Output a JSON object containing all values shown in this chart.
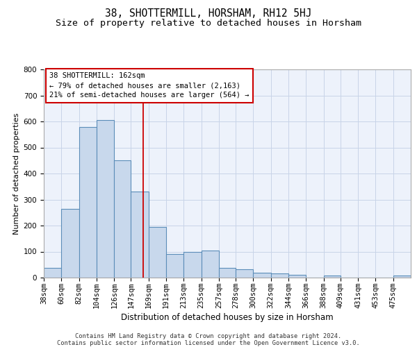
{
  "title": "38, SHOTTERMILL, HORSHAM, RH12 5HJ",
  "subtitle": "Size of property relative to detached houses in Horsham",
  "xlabel": "Distribution of detached houses by size in Horsham",
  "ylabel": "Number of detached properties",
  "categories": [
    "38sqm",
    "60sqm",
    "82sqm",
    "104sqm",
    "126sqm",
    "147sqm",
    "169sqm",
    "191sqm",
    "213sqm",
    "235sqm",
    "257sqm",
    "278sqm",
    "300sqm",
    "322sqm",
    "344sqm",
    "366sqm",
    "388sqm",
    "409sqm",
    "431sqm",
    "453sqm",
    "475sqm"
  ],
  "values": [
    38,
    265,
    580,
    605,
    450,
    330,
    195,
    90,
    100,
    105,
    38,
    33,
    18,
    17,
    12,
    0,
    8,
    0,
    0,
    0,
    8
  ],
  "bar_color": "#c8d8ec",
  "bar_edge_color": "#5b8db8",
  "grid_color": "#c8d4e8",
  "background_color": "#edf2fb",
  "annotation_line1": "38 SHOTTERMILL: 162sqm",
  "annotation_line2": "← 79% of detached houses are smaller (2,163)",
  "annotation_line3": "21% of semi-detached houses are larger (564) →",
  "vline_x": 162,
  "vline_color": "#cc0000",
  "ylim": [
    0,
    800
  ],
  "yticks": [
    0,
    100,
    200,
    300,
    400,
    500,
    600,
    700,
    800
  ],
  "bin_edges": [
    38,
    60,
    82,
    104,
    126,
    147,
    169,
    191,
    213,
    235,
    257,
    278,
    300,
    322,
    344,
    366,
    388,
    409,
    431,
    453,
    475,
    497
  ],
  "footer_line1": "Contains HM Land Registry data © Crown copyright and database right 2024.",
  "footer_line2": "Contains public sector information licensed under the Open Government Licence v3.0.",
  "title_fontsize": 10.5,
  "subtitle_fontsize": 9.5,
  "xlabel_fontsize": 8.5,
  "ylabel_fontsize": 8,
  "tick_fontsize": 7.5,
  "annotation_fontsize": 7.5,
  "footer_fontsize": 6.2
}
